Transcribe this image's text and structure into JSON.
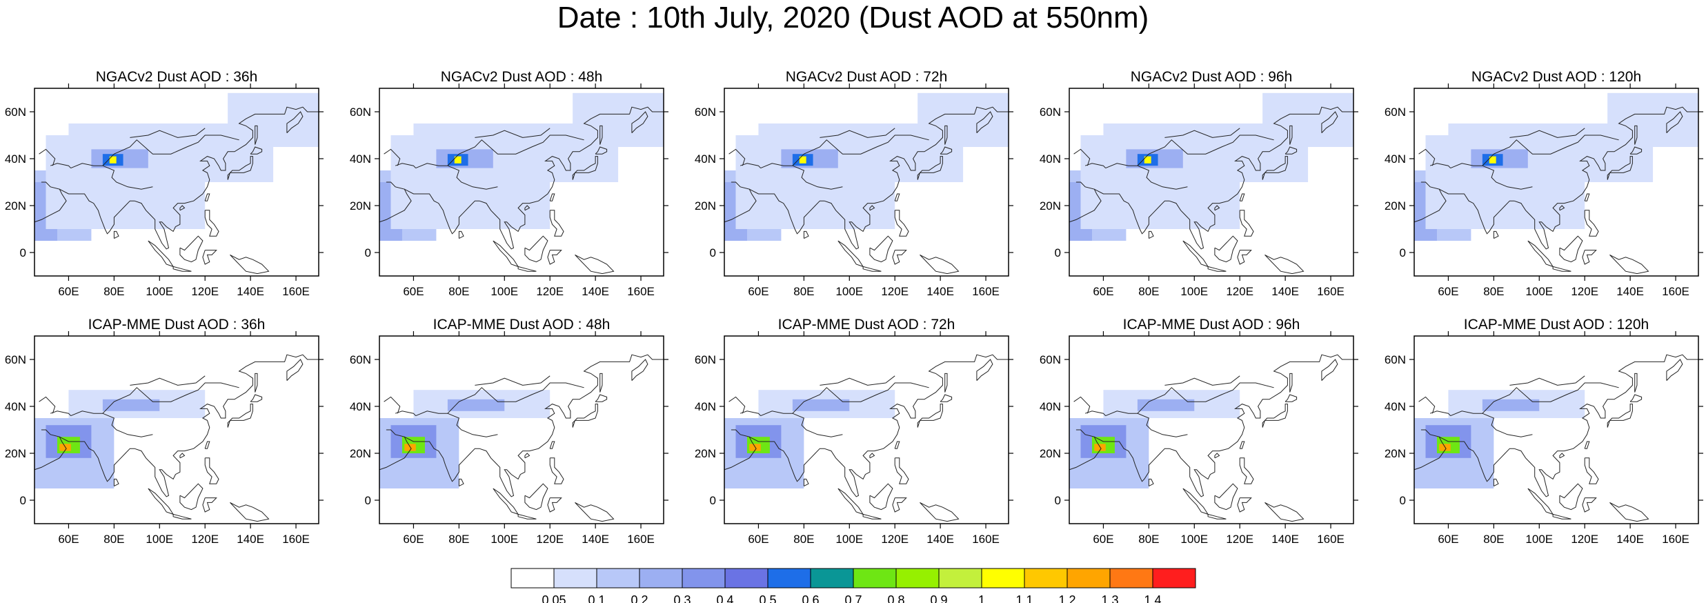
{
  "figure": {
    "title": "Date : 10th July, 2020 (Dust AOD at 550nm)"
  },
  "panels": [
    {
      "id": "ngac-36",
      "title": "NGACv2 Dust AOD : 36h",
      "model": "NGACv2",
      "lead": "36h"
    },
    {
      "id": "ngac-48",
      "title": "NGACv2 Dust AOD : 48h",
      "model": "NGACv2",
      "lead": "48h"
    },
    {
      "id": "ngac-72",
      "title": "NGACv2 Dust AOD : 72h",
      "model": "NGACv2",
      "lead": "72h"
    },
    {
      "id": "ngac-96",
      "title": "NGACv2 Dust AOD : 96h",
      "model": "NGACv2",
      "lead": "96h"
    },
    {
      "id": "ngac-120",
      "title": "NGACv2 Dust AOD : 120h",
      "model": "NGACv2",
      "lead": "120h"
    },
    {
      "id": "icap-36",
      "title": "ICAP-MME Dust AOD : 36h",
      "model": "ICAP-MME",
      "lead": "36h"
    },
    {
      "id": "icap-48",
      "title": "ICAP-MME Dust AOD : 48h",
      "model": "ICAP-MME",
      "lead": "48h"
    },
    {
      "id": "icap-72",
      "title": "ICAP-MME Dust AOD : 72h",
      "model": "ICAP-MME",
      "lead": "72h"
    },
    {
      "id": "icap-96",
      "title": "ICAP-MME Dust AOD : 96h",
      "model": "ICAP-MME",
      "lead": "96h"
    },
    {
      "id": "icap-120",
      "title": "ICAP-MME Dust AOD : 120h",
      "model": "ICAP-MME",
      "lead": "120h"
    }
  ],
  "map": {
    "lon_range": [
      45,
      170
    ],
    "lat_range": [
      -10,
      70
    ],
    "lon_ticks": [
      {
        "v": 60,
        "label": "60E"
      },
      {
        "v": 80,
        "label": "80E"
      },
      {
        "v": 100,
        "label": "100E"
      },
      {
        "v": 120,
        "label": "120E"
      },
      {
        "v": 140,
        "label": "140E"
      },
      {
        "v": 160,
        "label": "160E"
      }
    ],
    "lat_ticks": [
      {
        "v": 60,
        "label": "60N"
      },
      {
        "v": 40,
        "label": "40N"
      },
      {
        "v": 20,
        "label": "20N"
      },
      {
        "v": 0,
        "label": "0"
      }
    ]
  },
  "colorbar": {
    "colors": [
      "#ffffff",
      "#d6e0fc",
      "#b8c8f8",
      "#9caff2",
      "#8294ec",
      "#6a73e4",
      "#1e6ee8",
      "#0a9696",
      "#6ee614",
      "#96f000",
      "#c3f03c",
      "#ffff00",
      "#ffc800",
      "#ffa500",
      "#ff7814",
      "#ff1e1e"
    ],
    "labels": [
      "0.05",
      "0.1",
      "0.2",
      "0.3",
      "0.4",
      "0.5",
      "0.6",
      "0.7",
      "0.8",
      "0.9",
      "1",
      "1.1",
      "1.2",
      "1.3",
      "1.4"
    ]
  },
  "dust_fields": {
    "ngac": [
      {
        "lon": [
          45,
          70
        ],
        "lat": [
          5,
          35
        ],
        "level": 2
      },
      {
        "lon": [
          45,
          55
        ],
        "lat": [
          5,
          30
        ],
        "level": 3
      },
      {
        "lon": [
          50,
          120
        ],
        "lat": [
          10,
          50
        ],
        "level": 1
      },
      {
        "lon": [
          60,
          150
        ],
        "lat": [
          30,
          55
        ],
        "level": 1
      },
      {
        "lon": [
          130,
          170
        ],
        "lat": [
          45,
          68
        ],
        "level": 1
      },
      {
        "lon": [
          70,
          95
        ],
        "lat": [
          36,
          44
        ],
        "level": 3
      },
      {
        "lon": [
          75,
          84
        ],
        "lat": [
          37,
          42
        ],
        "level": 6
      },
      {
        "lon": [
          78,
          81
        ],
        "lat": [
          38,
          41
        ],
        "level": 11
      }
    ],
    "icap": [
      {
        "lon": [
          45,
          80
        ],
        "lat": [
          5,
          35
        ],
        "level": 2
      },
      {
        "lon": [
          60,
          120
        ],
        "lat": [
          35,
          47
        ],
        "level": 1
      },
      {
        "lon": [
          75,
          100
        ],
        "lat": [
          38,
          43
        ],
        "level": 3
      },
      {
        "lon": [
          50,
          70
        ],
        "lat": [
          18,
          32
        ],
        "level": 4
      },
      {
        "lon": [
          55,
          65
        ],
        "lat": [
          20,
          27
        ],
        "level": 8
      },
      {
        "lon": [
          56,
          61
        ],
        "lat": [
          21,
          24
        ],
        "level": 13
      }
    ]
  }
}
